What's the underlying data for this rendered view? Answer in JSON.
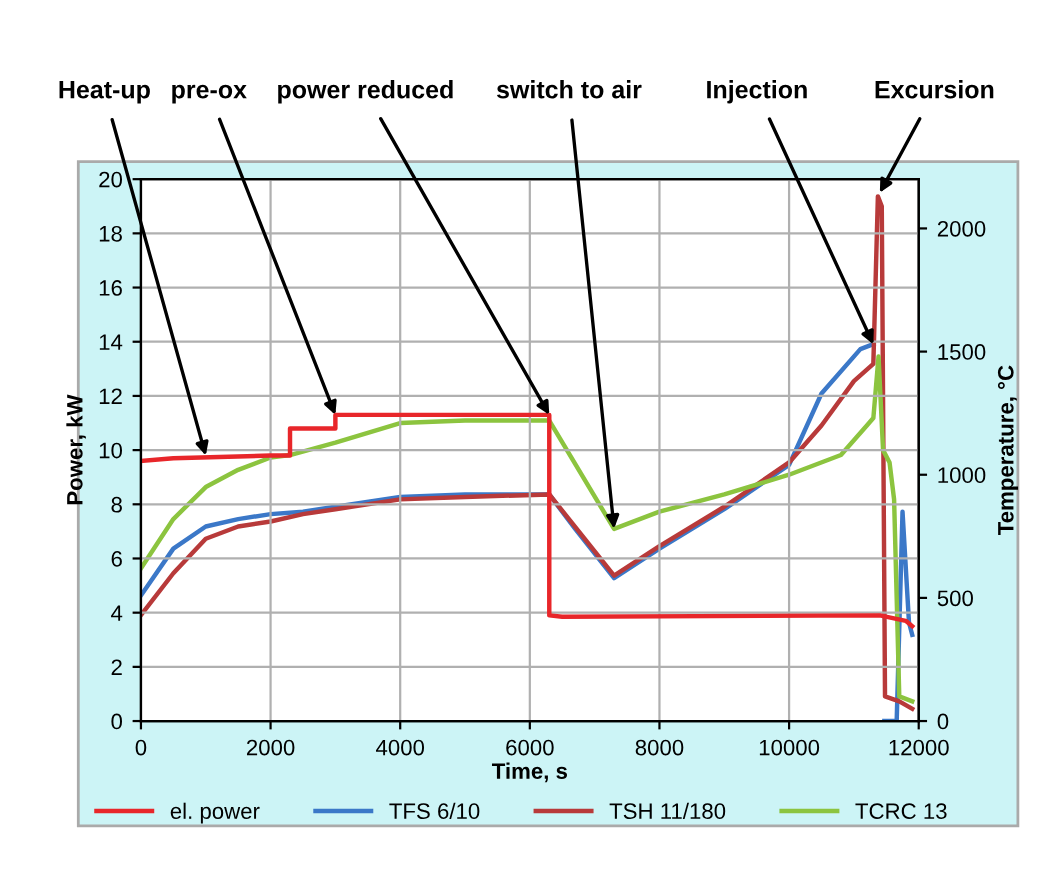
{
  "chart_data": {
    "type": "line",
    "xlabel": "Time, s",
    "ylabel": "Power, kW",
    "y2label": "Temperature, °C",
    "xlim": [
      0,
      12000
    ],
    "xticks": [
      0,
      2000,
      4000,
      6000,
      8000,
      10000,
      12000
    ],
    "ylim": [
      0,
      20
    ],
    "yticks": [
      0,
      2,
      4,
      6,
      8,
      10,
      12,
      14,
      16,
      18,
      20
    ],
    "y2lim": [
      0,
      2200
    ],
    "y2ticks": [
      0,
      500,
      1000,
      1500,
      2000
    ],
    "grid": true,
    "legend": "bottom",
    "marker": "none",
    "line_style": "solid",
    "series": [
      {
        "name": "el. power",
        "color": "#e8262a",
        "x": [
          0,
          500,
          2000,
          2300,
          2300,
          3000,
          3000,
          6300,
          6300,
          6500,
          11400,
          11800,
          11900
        ],
        "values": [
          9.6,
          9.7,
          9.8,
          9.8,
          10.8,
          10.8,
          11.3,
          11.3,
          3.9,
          3.85,
          3.9,
          3.7,
          3.5
        ]
      },
      {
        "name": "TFS 6/10",
        "color": "#3b78c8",
        "axis": "y2",
        "x": [
          0,
          500,
          1000,
          1500,
          2000,
          2500,
          3000,
          4000,
          5000,
          6300,
          6700,
          7300,
          8000,
          9000,
          10000,
          10500,
          11100,
          11300,
          11400,
          11470,
          11660,
          11750,
          11850,
          11900
        ],
        "values": [
          510,
          700,
          790,
          820,
          840,
          850,
          870,
          910,
          920,
          920,
          780,
          580,
          700,
          860,
          1040,
          1330,
          1510,
          1530,
          null,
          0,
          0,
          850,
          400,
          350
        ]
      },
      {
        "name": "TSH 11/180",
        "color": "#b83a3a",
        "axis": "y2",
        "x": [
          0,
          500,
          1000,
          1500,
          2000,
          2500,
          3000,
          4000,
          5000,
          6300,
          7300,
          8000,
          9000,
          10000,
          10500,
          11000,
          11300,
          11370,
          11430,
          11480,
          11700,
          11900
        ],
        "values": [
          430,
          600,
          740,
          790,
          810,
          840,
          860,
          900,
          910,
          920,
          590,
          710,
          870,
          1050,
          1200,
          1380,
          1450,
          2130,
          2090,
          100,
          80,
          50
        ]
      },
      {
        "name": "TCRC 13",
        "color": "#8cc43f",
        "axis": "y2",
        "x": [
          0,
          500,
          1000,
          1500,
          2000,
          2300,
          3000,
          4000,
          5000,
          6300,
          7300,
          8000,
          9000,
          10000,
          10800,
          11200,
          11300,
          11380,
          11450,
          11550,
          11620,
          11700,
          11900
        ],
        "values": [
          620,
          820,
          950,
          1020,
          1070,
          1080,
          1130,
          1210,
          1220,
          1220,
          780,
          850,
          920,
          1000,
          1080,
          1200,
          1230,
          1480,
          1100,
          1050,
          900,
          100,
          80
        ]
      }
    ],
    "annotations": [
      {
        "text": "Heat-up",
        "x": 1000,
        "y": 9.8
      },
      {
        "text": "pre-ox",
        "x": 3000,
        "y": 11.3
      },
      {
        "text": "power reduced",
        "x": 6300,
        "y": 11.3
      },
      {
        "text": "switch to air",
        "x": 7300,
        "y": 7.1
      },
      {
        "text": "Injection",
        "x": 11300,
        "y": 13.9
      },
      {
        "text": "Excursion",
        "x": 11400,
        "y": 19.5
      }
    ]
  }
}
